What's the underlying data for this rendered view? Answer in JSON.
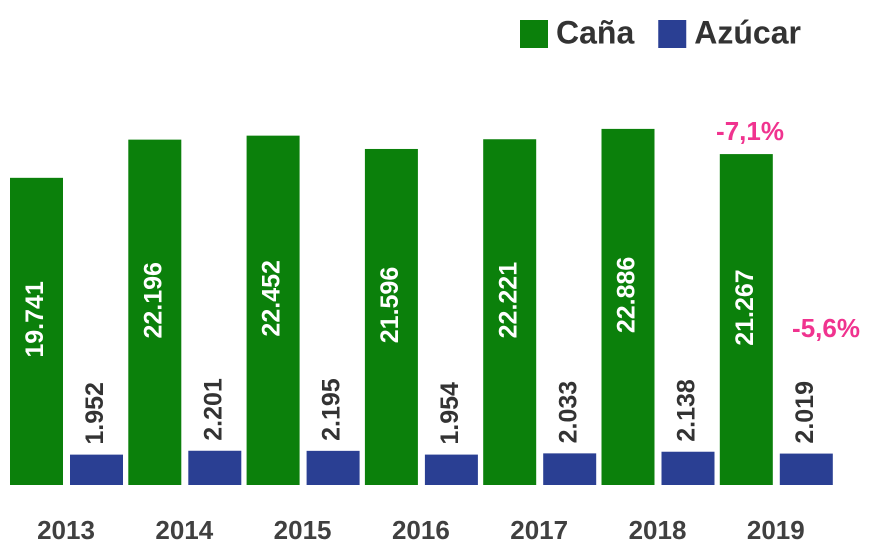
{
  "chart_data": {
    "type": "bar",
    "categories": [
      "2013",
      "2014",
      "2015",
      "2016",
      "2017",
      "2018",
      "2019"
    ],
    "series": [
      {
        "name": "Caña",
        "color": "#0b800b",
        "values": [
          19741,
          22196,
          22452,
          21596,
          22221,
          22886,
          21267
        ],
        "value_labels": [
          "19.741",
          "22.196",
          "22.452",
          "21.596",
          "22.221",
          "22.886",
          "21.267"
        ]
      },
      {
        "name": "Azúcar",
        "color": "#2a3f93",
        "values": [
          1952,
          2201,
          2195,
          1954,
          2033,
          2138,
          2019
        ],
        "value_labels": [
          "1.952",
          "2.201",
          "2.195",
          "1.954",
          "2.033",
          "2.138",
          "2.019"
        ]
      }
    ],
    "ylim": [
      0,
      25000
    ],
    "legend": "top-right",
    "annotations": [
      "-7,1%",
      "-5,6%"
    ]
  }
}
